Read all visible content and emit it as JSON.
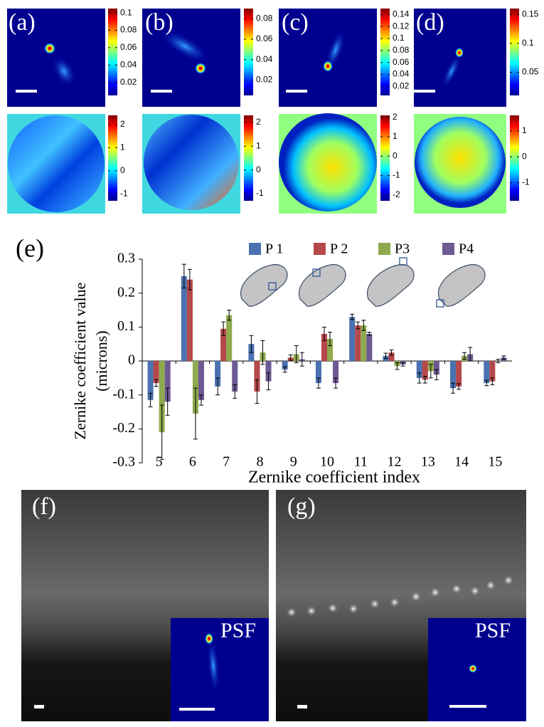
{
  "panels": {
    "psf": [
      {
        "label": "(a)",
        "colorbar": {
          "lim": [
            0.005,
            0.105
          ],
          "ticks": [
            0.02,
            0.04,
            0.06,
            0.08,
            0.1
          ]
        }
      },
      {
        "label": "(b)",
        "colorbar": {
          "lim": [
            0.005,
            0.09
          ],
          "ticks": [
            0.02,
            0.04,
            0.06,
            0.08
          ]
        }
      },
      {
        "label": "(c)",
        "colorbar": {
          "lim": [
            0.005,
            0.15
          ],
          "ticks": [
            0.02,
            0.04,
            0.06,
            0.08,
            0.1,
            0.12,
            0.14
          ]
        }
      },
      {
        "label": "(d)",
        "colorbar": {
          "lim": [
            0.01,
            0.16
          ],
          "ticks": [
            0.05,
            0.1,
            0.15
          ]
        }
      }
    ],
    "phase": [
      {
        "colorbar": {
          "lim": [
            -1.3,
            2.4
          ],
          "ticks": [
            -1,
            0,
            1,
            2
          ]
        }
      },
      {
        "colorbar": {
          "lim": [
            -1.3,
            2.3
          ],
          "ticks": [
            -1,
            0,
            1,
            2
          ]
        }
      },
      {
        "colorbar": {
          "lim": [
            -2.3,
            2.1
          ],
          "ticks": [
            -2,
            -1,
            0,
            1,
            2
          ]
        }
      },
      {
        "colorbar": {
          "lim": [
            -1.7,
            1.6
          ],
          "ticks": [
            -1,
            0,
            1
          ]
        }
      }
    ],
    "images": [
      {
        "label": "(f)",
        "inset_label": "PSF"
      },
      {
        "label": "(g)",
        "inset_label": "PSF"
      }
    ]
  },
  "chart_data": {
    "type": "bar",
    "label": "(e)",
    "y_label": [
      "Zernike coefficient value",
      "(microns)"
    ],
    "x_label": "Zernike coefficient index",
    "categories": [
      5,
      6,
      7,
      8,
      9,
      10,
      11,
      12,
      13,
      14,
      15
    ],
    "ylim": [
      -0.3,
      0.3
    ],
    "yticks": [
      -0.3,
      -0.2,
      -0.1,
      0,
      0.1,
      0.2,
      0.3
    ],
    "series": [
      {
        "name": "P 1",
        "color": "#4a72b0",
        "values": [
          -0.115,
          0.25,
          -0.075,
          0.05,
          -0.025,
          -0.065,
          0.13,
          0.015,
          -0.05,
          -0.08,
          -0.065
        ],
        "errors": [
          0.02,
          0.035,
          0.025,
          0.025,
          0.008,
          0.015,
          0.008,
          0.008,
          0.015,
          0.015,
          0.008
        ]
      },
      {
        "name": "P 2",
        "color": "#b5484a",
        "values": [
          -0.065,
          0.24,
          0.095,
          -0.09,
          0.01,
          0.08,
          0.105,
          0.025,
          -0.055,
          -0.075,
          -0.06
        ],
        "errors": [
          0.01,
          0.03,
          0.02,
          0.035,
          0.008,
          0.02,
          0.01,
          0.008,
          0.01,
          0.008,
          0.01
        ]
      },
      {
        "name": "P3",
        "color": "#8faa4e",
        "values": [
          -0.21,
          -0.155,
          0.135,
          0.025,
          0.02,
          0.065,
          0.105,
          -0.015,
          -0.03,
          0.015,
          0.0
        ],
        "errors": [
          0.08,
          0.075,
          0.015,
          0.035,
          0.025,
          0.02,
          0.015,
          0.01,
          0.02,
          0.01,
          0.005
        ]
      },
      {
        "name": "P4",
        "color": "#6e5a93",
        "values": [
          -0.12,
          -0.115,
          -0.09,
          -0.06,
          0.005,
          -0.065,
          0.08,
          -0.01,
          -0.04,
          0.02,
          0.01
        ],
        "errors": [
          0.04,
          0.015,
          0.02,
          0.025,
          0.02,
          0.015,
          0.005,
          0.005,
          0.015,
          0.02,
          0.005
        ]
      }
    ]
  }
}
